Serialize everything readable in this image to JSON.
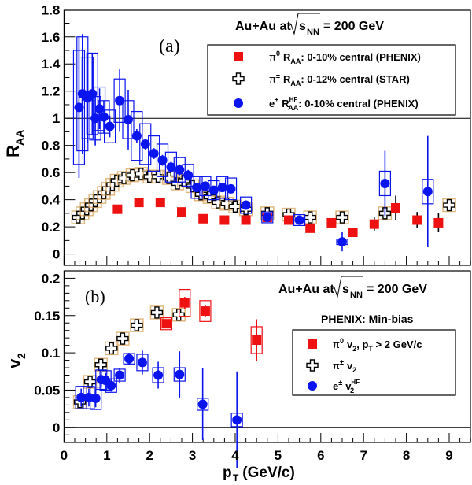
{
  "chart_data": [
    {
      "type": "scatter",
      "panel_label": "(a)",
      "title": "Au+Au at √sNN = 200 GeV",
      "title_parts": {
        "pre": "Au+Au at",
        "s": "s",
        "sub": "NN",
        "post": "= 200 GeV"
      },
      "xlabel": "pT (GeV/c)",
      "ylabel": "RAA",
      "xlim": [
        0,
        9.5
      ],
      "ylim": [
        -0.09,
        1.8
      ],
      "yticks": [
        "0",
        "0.2",
        "0.4",
        "0.6",
        "0.8",
        "1",
        "1.2",
        "1.4",
        "1.6",
        "1.8"
      ],
      "reference_line": 1,
      "legend_position": "top-right",
      "series": [
        {
          "name": "π0 RAA: 0-10% central (PHENIX)",
          "legend": {
            "sym": "π",
            "sup": "0",
            "q": "R",
            "qsub": "AA",
            "qsup": "",
            "rest": ": 0-10% central (PHENIX)"
          },
          "marker": "filled-square",
          "color": "#ee1111",
          "x": [
            1.25,
            1.75,
            2.25,
            2.75,
            3.25,
            3.75,
            4.25,
            4.75,
            5.25,
            5.75,
            6.25,
            6.75,
            7.25,
            7.75,
            8.25,
            8.75
          ],
          "y": [
            0.33,
            0.38,
            0.38,
            0.31,
            0.26,
            0.25,
            0.25,
            0.27,
            0.25,
            0.19,
            0.23,
            0.16,
            0.22,
            0.34,
            0.25,
            0.23
          ],
          "yerr": [
            0.02,
            0.03,
            0.03,
            0.02,
            0.02,
            0.02,
            0.02,
            0.02,
            0.02,
            0.02,
            0.03,
            0.03,
            0.05,
            0.09,
            0.06,
            0.07
          ]
        },
        {
          "name": "π± RAA: 0-12% central (STAR)",
          "legend": {
            "sym": "π",
            "sup": "±",
            "q": "R",
            "qsub": "AA",
            "qsup": "",
            "rest": ": 0-12% central (STAR)"
          },
          "marker": "open-cross",
          "color": "#000000",
          "syscolor": "#d9a860",
          "x": [
            0.33,
            0.43,
            0.53,
            0.63,
            0.73,
            0.83,
            0.93,
            1.03,
            1.13,
            1.23,
            1.4,
            1.6,
            1.8,
            2.0,
            2.2,
            2.45,
            2.65,
            2.8,
            3.0,
            3.2,
            3.4,
            3.6,
            3.8,
            4.0,
            4.25,
            4.75,
            5.25,
            5.75,
            6.5,
            7.5,
            9.0
          ],
          "y": [
            0.27,
            0.3,
            0.33,
            0.36,
            0.39,
            0.42,
            0.45,
            0.48,
            0.51,
            0.54,
            0.56,
            0.58,
            0.59,
            0.57,
            0.57,
            0.56,
            0.52,
            0.54,
            0.5,
            0.44,
            0.42,
            0.38,
            0.37,
            0.35,
            0.33,
            0.3,
            0.29,
            0.27,
            0.27,
            0.3,
            0.36
          ]
        },
        {
          "name": "e± RAA HF: 0-10% central (PHENIX)",
          "legend": {
            "sym": "e",
            "sup": "±",
            "q": "R",
            "qsub": "AA",
            "qsup": "HF",
            "rest": ": 0-10% central (PHENIX)"
          },
          "marker": "filled-circle",
          "color": "#0a14ee",
          "x": [
            0.35,
            0.43,
            0.55,
            0.66,
            0.73,
            0.83,
            0.93,
            1.07,
            1.3,
            1.5,
            1.7,
            1.9,
            2.1,
            2.3,
            2.5,
            2.7,
            2.9,
            3.1,
            3.3,
            3.5,
            3.7,
            3.9,
            4.25,
            4.75,
            5.5,
            6.5,
            7.5,
            8.5
          ],
          "y": [
            1.08,
            1.18,
            1.15,
            1.18,
            1.0,
            1.07,
            1.01,
            0.94,
            1.13,
            0.99,
            0.87,
            0.81,
            0.74,
            0.69,
            0.64,
            0.62,
            0.58,
            0.49,
            0.5,
            0.47,
            0.49,
            0.48,
            0.36,
            0.27,
            0.25,
            0.09,
            0.52,
            0.46
          ],
          "yerr": [
            0.52,
            0.44,
            0.33,
            0.3,
            0.2,
            0.15,
            0.12,
            0.08,
            0.23,
            0.22,
            0.05,
            0.04,
            0.04,
            0.04,
            0.04,
            0.04,
            0.04,
            0.03,
            0.03,
            0.03,
            0.03,
            0.03,
            0.03,
            0.03,
            0.03,
            0.07,
            0.24,
            0.41
          ],
          "sys": [
            0.42,
            0.42,
            0.3,
            0.3,
            0.16,
            0.16,
            0.12,
            0.12,
            0.16,
            0.14,
            0.18,
            0.15,
            0.13,
            0.12,
            0.11,
            0.09,
            0.08,
            0.08,
            0.07,
            0.07,
            0.08,
            0.08,
            0.06,
            0.04,
            0.04,
            0.02,
            0.09,
            0.09
          ]
        }
      ]
    },
    {
      "type": "scatter",
      "panel_label": "(b)",
      "title": "Au+Au at √sNN = 200 GeV",
      "title_parts": {
        "pre": "Au+Au at",
        "s": "s",
        "sub": "NN",
        "post": "= 200 GeV"
      },
      "legend_header": "PHENIX: Min-bias",
      "xlabel": "pT (GeV/c)",
      "xlabel_parts": {
        "p": "p",
        "sub": "T",
        "rest": " (GeV/c)"
      },
      "ylabel": "v2",
      "xlim": [
        0,
        9.5
      ],
      "ylim": [
        -0.02,
        0.21
      ],
      "xticks": [
        "0",
        "1",
        "2",
        "3",
        "4",
        "5",
        "6",
        "7",
        "8",
        "9"
      ],
      "yticks": [
        "0",
        "0.05",
        "0.1",
        "0.15",
        "0.2"
      ],
      "reference_line": 0,
      "legend_position": "right",
      "series": [
        {
          "name": "π0 v2, pT > 2 GeV/c",
          "legend": {
            "sym": "π",
            "sup": "0",
            "q": "v",
            "qsub": "2",
            "qsup": "",
            "rest": ", p",
            "rest_sub": "T",
            "rest2": " > 2 GeV/c"
          },
          "marker": "filled-square",
          "color": "#ee1111",
          "x": [
            2.39,
            2.82,
            3.3,
            4.5
          ],
          "y": [
            0.139,
            0.167,
            0.156,
            0.117
          ],
          "yerr": [
            0.005,
            0.008,
            0.008,
            0.028
          ],
          "sys": [
            0.008,
            0.018,
            0.014,
            0.018
          ]
        },
        {
          "name": "π± v2",
          "legend": {
            "sym": "π",
            "sup": "±",
            "q": "v",
            "qsub": "2",
            "qsup": "",
            "rest": ""
          },
          "marker": "open-cross",
          "color": "#000000",
          "syscolor": "#d9a860",
          "x": [
            0.37,
            0.61,
            0.86,
            1.11,
            1.37,
            1.7,
            2.17,
            2.68
          ],
          "y": [
            0.034,
            0.061,
            0.084,
            0.106,
            0.119,
            0.137,
            0.154,
            0.151
          ]
        },
        {
          "name": "e± v2 HF",
          "legend": {
            "sym": "e",
            "sup": "±",
            "q": "v",
            "qsub": "2",
            "qsup": "HF",
            "rest": ""
          },
          "marker": "filled-circle",
          "color": "#0a14ee",
          "x": [
            0.4,
            0.58,
            0.74,
            0.87,
            0.97,
            1.1,
            1.3,
            1.52,
            1.83,
            2.2,
            2.7,
            3.24,
            4.04
          ],
          "y": [
            0.04,
            0.04,
            0.039,
            0.064,
            0.063,
            0.056,
            0.07,
            0.092,
            0.087,
            0.07,
            0.071,
            0.031,
            0.01
          ],
          "yerr": [
            0.012,
            0.012,
            0.012,
            0.01,
            0.01,
            0.008,
            0.01,
            0.008,
            0.016,
            0.018,
            0.031,
            0.048,
            0.065
          ],
          "sys": [
            0.015,
            0.015,
            0.015,
            0.013,
            0.013,
            0.009,
            0.008,
            0.007,
            0.011,
            0.01,
            0.009,
            0.008,
            0.009
          ]
        }
      ]
    }
  ]
}
